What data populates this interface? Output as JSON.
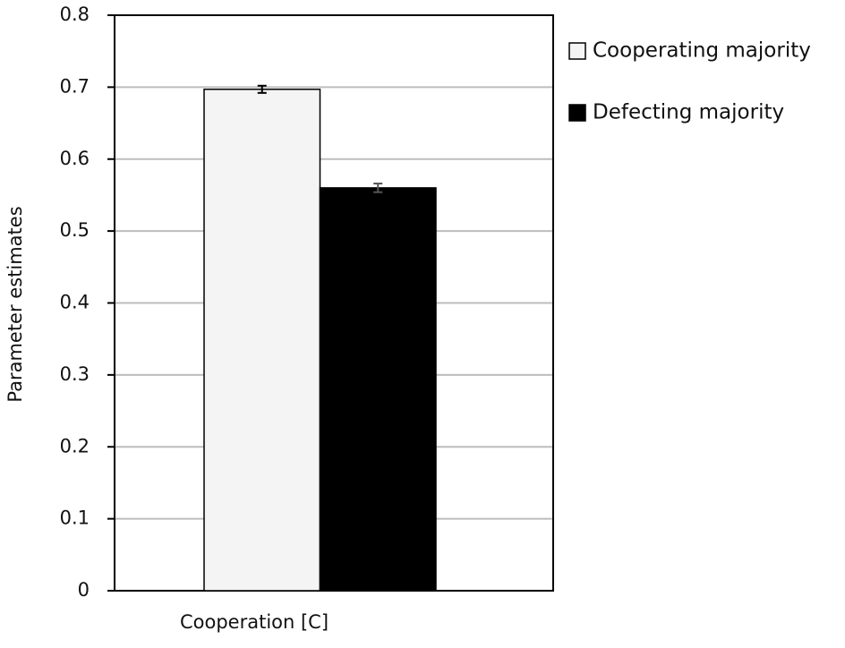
{
  "chart_data": {
    "type": "bar",
    "y_label": "Parameter estimates",
    "categories": [
      "Cooperation [C]"
    ],
    "series": [
      {
        "name": "Cooperating majority",
        "color": "#f4f4f4",
        "values": [
          0.697
        ],
        "errors": [
          0.005
        ]
      },
      {
        "name": "Defecting majority",
        "color": "#000000",
        "values": [
          0.56
        ],
        "errors": [
          0.006
        ]
      }
    ],
    "ylim": [
      0,
      0.8
    ],
    "yticks": [
      0,
      0.1,
      0.2,
      0.3,
      0.4,
      0.5,
      0.6,
      0.7,
      0.8
    ],
    "grid": true
  }
}
